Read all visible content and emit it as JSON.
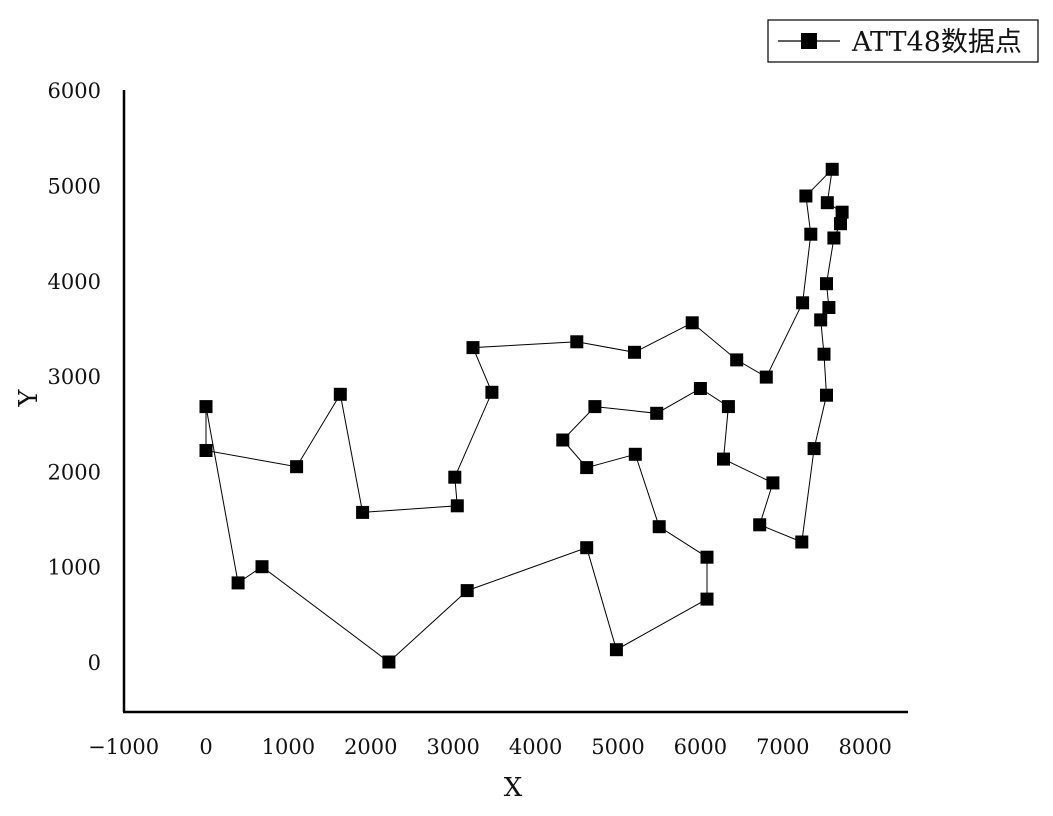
{
  "chart_data": {
    "type": "line",
    "xlabel": "X",
    "ylabel": "Y",
    "xlim": [
      -1000,
      8500
    ],
    "ylim": [
      -500,
      6000
    ],
    "xticks": [
      -1000,
      0,
      1000,
      2000,
      3000,
      4000,
      5000,
      6000,
      7000,
      8000
    ],
    "yticks": [
      0,
      1000,
      2000,
      3000,
      4000,
      5000,
      6000
    ],
    "legend_position": "top-right",
    "grid": false,
    "series": [
      {
        "name": "ATT48数据点",
        "color": "#000000",
        "marker": "square",
        "closed": true,
        "x": [
          0,
          0,
          1100,
          1630,
          1900,
          3050,
          3020,
          3470,
          3240,
          4500,
          5200,
          5900,
          6440,
          6800,
          7240,
          7340,
          7280,
          7600,
          7540,
          7720,
          7700,
          7620,
          7530,
          7560,
          7460,
          7500,
          7530,
          7380,
          7230,
          6720,
          6880,
          6280,
          6340,
          6000,
          5470,
          4720,
          4330,
          4620,
          5210,
          5500,
          6080,
          6080,
          4980,
          4620,
          3170,
          2220,
          680,
          390
        ],
        "y": [
          2690,
          2230,
          2060,
          2820,
          1580,
          1650,
          1950,
          2840,
          3310,
          3370,
          3260,
          3570,
          3180,
          3000,
          3780,
          4500,
          4900,
          5180,
          4830,
          4730,
          4610,
          4460,
          3980,
          3730,
          3600,
          3240,
          2810,
          2250,
          1270,
          1450,
          1890,
          2140,
          2690,
          2880,
          2620,
          2690,
          2340,
          2050,
          2190,
          1430,
          1110,
          670,
          140,
          1210,
          760,
          10,
          1010,
          840
        ]
      }
    ]
  }
}
